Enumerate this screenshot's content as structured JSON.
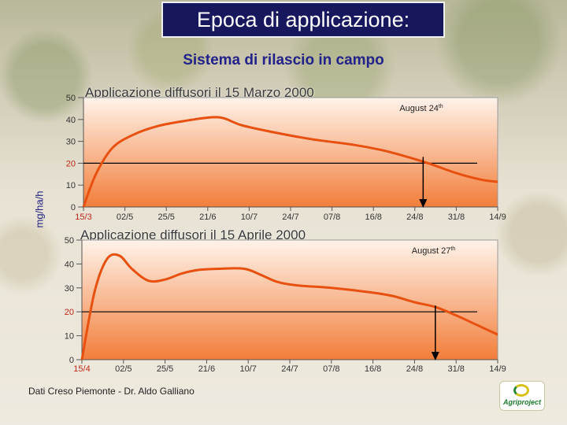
{
  "title": "Epoca di applicazione:",
  "subtitle": "Sistema di rilascio in campo",
  "y_axis_label": "mg/ha/h",
  "footer": "Dati Creso Piemonte - Dr. Aldo Galliano",
  "logo_text": "Agriproject",
  "colors": {
    "title_bg": "#17175e",
    "subtitle": "#22228a",
    "curve": "#e8500f",
    "plot_top": "#fff3ea",
    "plot_bottom": "#f27e3a",
    "threshold_line": "#000000"
  },
  "chart_data": [
    {
      "type": "line",
      "title": "Applicazione diffusori il 15 Marzo 2000",
      "x_tick_labels": [
        "15/3",
        "02/5",
        "25/5",
        "21/6",
        "10/7",
        "24/7",
        "07/8",
        "16/8",
        "24/8",
        "31/8",
        "14/9"
      ],
      "y_ticks": [
        0,
        10,
        20,
        30,
        40,
        50
      ],
      "ylim": [
        0,
        50
      ],
      "threshold": 20,
      "annotation": {
        "text": "August 24",
        "sup": "th",
        "x": 8.2
      },
      "series": [
        {
          "x": [
            0,
            0.3,
            0.7,
            1.2,
            1.8,
            2.5,
            3.1,
            3.4,
            3.8,
            4.5,
            5.5,
            6.5,
            7.2,
            7.8,
            8.4,
            9.0,
            9.6,
            10.0
          ],
          "y": [
            0,
            15,
            27,
            33,
            37,
            39.5,
            41,
            40.5,
            37.5,
            34.5,
            31,
            28.5,
            26,
            23,
            19.5,
            15.5,
            12.5,
            11.5
          ]
        }
      ]
    },
    {
      "type": "line",
      "title": "Applicazione diffusori il 15 Aprile 2000",
      "x_tick_labels": [
        "15/4",
        "02/5",
        "25/5",
        "21/6",
        "10/7",
        "24/7",
        "07/8",
        "16/8",
        "24/8",
        "31/8",
        "14/9"
      ],
      "y_ticks": [
        0,
        10,
        20,
        30,
        40,
        50
      ],
      "ylim": [
        0,
        50
      ],
      "threshold": 20,
      "annotation": {
        "text": "August 27",
        "sup": "th",
        "x": 8.5
      },
      "series": [
        {
          "x": [
            0,
            0.3,
            0.6,
            0.9,
            1.2,
            1.6,
            2.0,
            2.4,
            2.8,
            3.3,
            3.9,
            4.3,
            4.7,
            5.2,
            6.0,
            7.0,
            7.5,
            8.0,
            8.5,
            9.0,
            9.5,
            10.0
          ],
          "y": [
            0,
            28,
            42,
            43.5,
            38,
            33,
            33.5,
            36,
            37.5,
            38,
            38,
            35.5,
            32.5,
            31,
            30,
            28,
            26.5,
            24,
            22,
            18.5,
            14.5,
            10.5
          ]
        }
      ]
    }
  ]
}
